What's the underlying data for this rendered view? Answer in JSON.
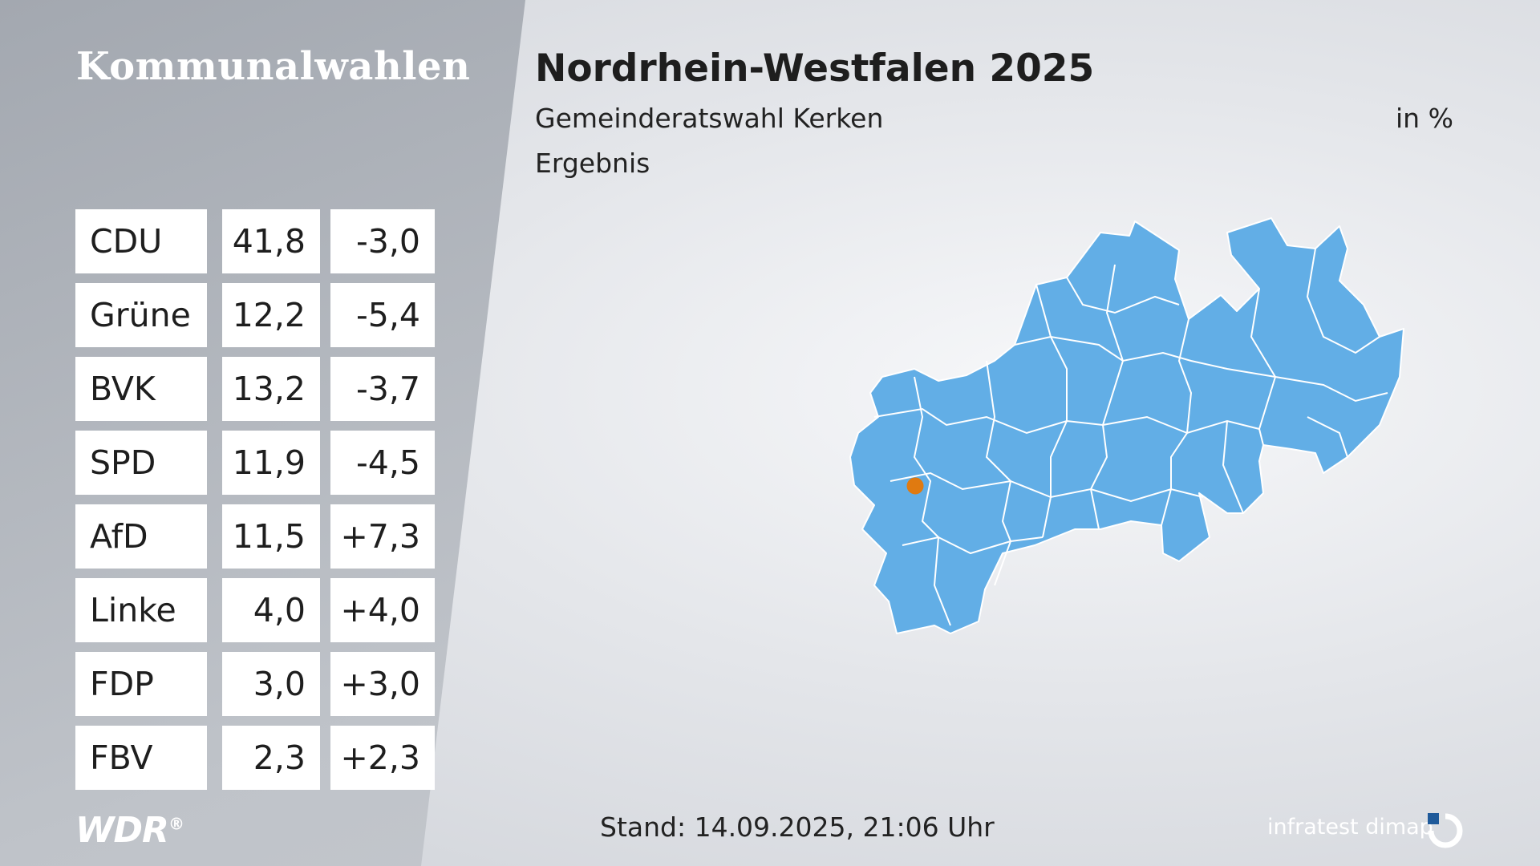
{
  "header": {
    "left_title": "Kommunalwahlen",
    "title": "Nordrhein-Westfalen 2025",
    "subtitle": "Gemeinderatswahl Kerken",
    "unit": "in %",
    "result_label": "Ergebnis"
  },
  "results": [
    {
      "party": "CDU",
      "value": "41,8",
      "change": "-3,0"
    },
    {
      "party": "Grüne",
      "value": "12,2",
      "change": "-5,4"
    },
    {
      "party": "BVK",
      "value": "13,2",
      "change": "-3,7"
    },
    {
      "party": "SPD",
      "value": "11,9",
      "change": "-4,5"
    },
    {
      "party": "AfD",
      "value": "11,5",
      "change": "+7,3"
    },
    {
      "party": "Linke",
      "value": "4,0",
      "change": "+4,0"
    },
    {
      "party": "FDP",
      "value": "3,0",
      "change": "+3,0"
    },
    {
      "party": "FBV",
      "value": "2,3",
      "change": "+2,3"
    }
  ],
  "map": {
    "region_color": "#62aee6",
    "border_color": "#ffffff",
    "marker_color": "#e07a10"
  },
  "footer": {
    "broadcaster": "WDR",
    "broadcaster_mark": "®",
    "stand": "Stand: 14.09.2025, 21:06 Uhr",
    "brand": "infratest dimap"
  },
  "colors": {
    "panel": "#a9adb4",
    "text": "#1e1e1e",
    "cell_bg": "#ffffff"
  }
}
